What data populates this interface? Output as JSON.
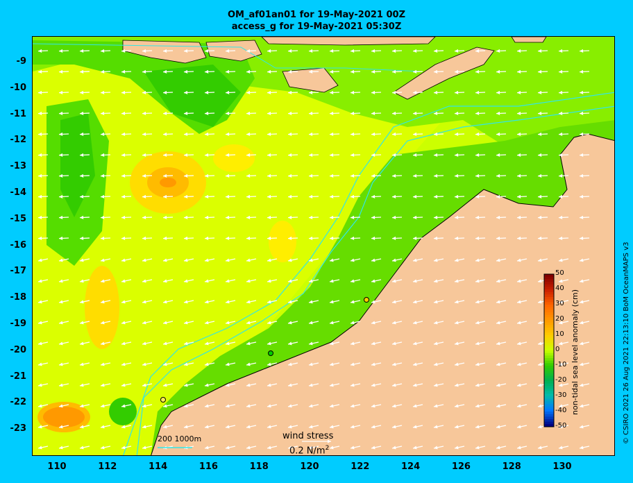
{
  "title_line1": "OM_af01an01 for 19-May-2021 00Z",
  "title_line2": "access_g for 19-May-2021 05:30Z",
  "y_ticks": [
    "-9",
    "-10",
    "-11",
    "-12",
    "-13",
    "-14",
    "-15",
    "-16",
    "-17",
    "-18",
    "-19",
    "-20",
    "-21",
    "-22",
    "-23"
  ],
  "x_ticks": [
    "110",
    "112",
    "114",
    "116",
    "118",
    "120",
    "122",
    "124",
    "126",
    "128",
    "130"
  ],
  "colorbar": {
    "title": "non-tidal sea level anomaly (cm)",
    "labels": [
      "50",
      "40",
      "30",
      "20",
      "10",
      "0",
      "-10",
      "-20",
      "-30",
      "-40",
      "-50"
    ],
    "colors": [
      "#800000",
      "#cc2200",
      "#ff6600",
      "#ff9900",
      "#ffcc00",
      "#ccff00",
      "#33cc00",
      "#00b050",
      "#00bbaa",
      "#0077ff",
      "#000080"
    ]
  },
  "scale_label": "200  1000m",
  "wind_stress_label": "wind stress",
  "wind_stress_value": "0.2 N/m",
  "wind_stress_exp": "2",
  "credit": "© CSIRO 2021  26 Aug 2021 22:13:10 BoM OceanMAPS v3",
  "colors": {
    "land": "#f7c79a",
    "background": "#00ccff",
    "contour": "#33e6e6"
  }
}
